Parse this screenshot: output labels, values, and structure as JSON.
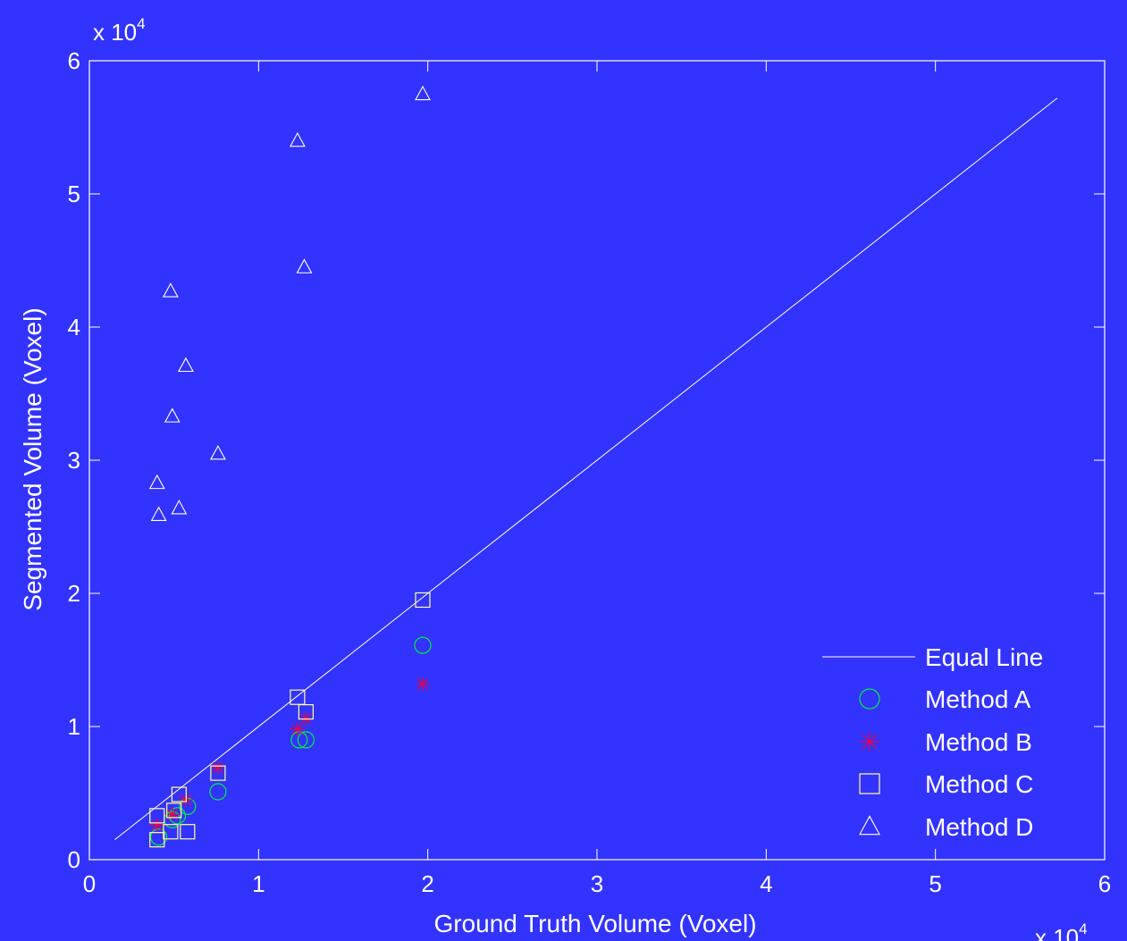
{
  "chart_data": {
    "type": "scatter",
    "xlabel": "Ground Truth Volume (Voxel)",
    "ylabel": "Segmented Volume (Voxel)",
    "x_multiplier_text": "x 10",
    "y_multiplier_text": "x 10",
    "multiplier_exponent": "4",
    "xlim": [
      0,
      60000
    ],
    "ylim": [
      0,
      60000
    ],
    "x_tick_labels": [
      "0",
      "1",
      "2",
      "3",
      "4",
      "5",
      "6"
    ],
    "y_tick_labels": [
      "0",
      "1",
      "2",
      "3",
      "4",
      "5",
      "6"
    ],
    "tick_values": [
      0,
      10000,
      20000,
      30000,
      40000,
      50000,
      60000
    ],
    "grid": false,
    "legend_position": "bottom-right",
    "colors": {
      "background": "#3333ff",
      "axes": "#ffffff",
      "equal_line": "#ffffff",
      "method_a": "#00ee44",
      "method_b": "#ee0044",
      "method_c": "#ffff99",
      "method_d": "#ffffff"
    },
    "equal_line": {
      "name": "Equal Line",
      "x": [
        1500,
        57200
      ],
      "y": [
        1500,
        57200
      ]
    },
    "series": [
      {
        "name": "Method A",
        "marker": "circle",
        "x": [
          4100,
          4900,
          5200,
          5800,
          7600,
          12400,
          12800,
          19700
        ],
        "y": [
          1700,
          3000,
          3300,
          4000,
          5100,
          9000,
          9000,
          16100
        ]
      },
      {
        "name": "Method B",
        "marker": "star",
        "x": [
          4000,
          4900,
          5700,
          7600,
          12300,
          12800,
          19700
        ],
        "y": [
          2600,
          3400,
          4500,
          6900,
          9800,
          10600,
          13200
        ]
      },
      {
        "name": "Method C",
        "marker": "square",
        "x": [
          4000,
          4000,
          4800,
          5000,
          5300,
          5800,
          7600,
          12300,
          12800,
          19700
        ],
        "y": [
          1500,
          3300,
          2100,
          3700,
          4900,
          2100,
          6500,
          12200,
          11100,
          19500
        ]
      },
      {
        "name": "Method D",
        "marker": "triangle",
        "x": [
          4000,
          4100,
          4800,
          4900,
          5300,
          5700,
          7600,
          12300,
          12700,
          19700
        ],
        "y": [
          28300,
          25900,
          42700,
          33300,
          26400,
          37100,
          30500,
          54000,
          44500,
          57500
        ]
      }
    ]
  }
}
